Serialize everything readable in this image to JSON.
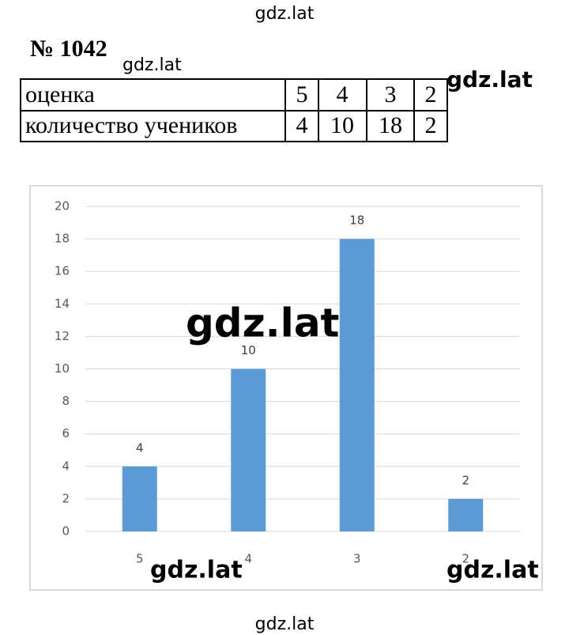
{
  "problem_number": "№ 1042",
  "watermarks": [
    "gdz.lat",
    "gdz.lat",
    "gdz.lat",
    "gdz.lat",
    "gdz.lat",
    "gdz.lat",
    "gdz.lat"
  ],
  "table": {
    "rows": [
      [
        "оценка",
        5,
        4,
        3,
        2
      ],
      [
        "количество учеников",
        4,
        10,
        18,
        2
      ]
    ]
  },
  "chart_data": {
    "type": "bar",
    "categories": [
      "5",
      "4",
      "3",
      "2"
    ],
    "values": [
      4,
      10,
      18,
      2
    ],
    "color": "#5b9bd5",
    "ylim": [
      0,
      20
    ],
    "yticks": [
      0,
      2,
      4,
      6,
      8,
      10,
      12,
      14,
      16,
      18,
      20
    ],
    "grid": true
  }
}
